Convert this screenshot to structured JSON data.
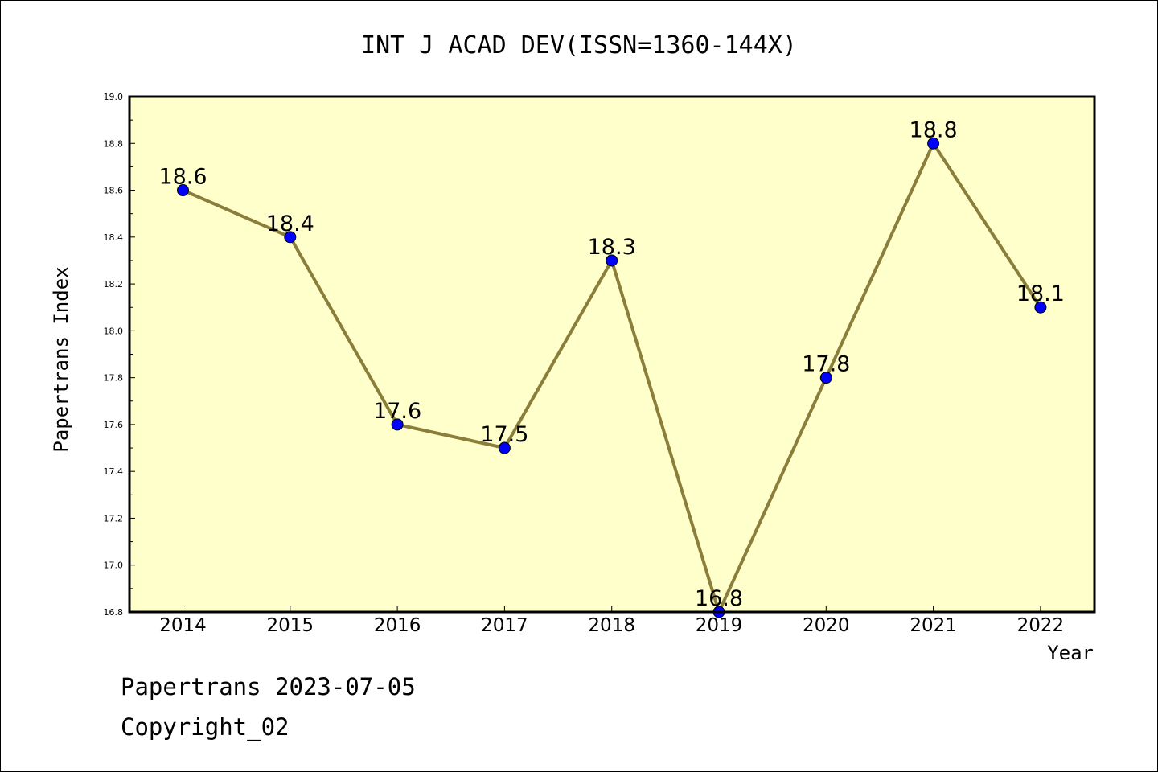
{
  "chart_data": {
    "type": "line",
    "title": "INT J ACAD DEV(ISSN=1360-144X)",
    "xlabel": "Year",
    "ylabel": "Papertrans Index",
    "categories": [
      "2014",
      "2015",
      "2016",
      "2017",
      "2018",
      "2019",
      "2020",
      "2021",
      "2022"
    ],
    "series": [
      {
        "values": [
          18.6,
          18.4,
          17.6,
          17.5,
          18.3,
          16.8,
          17.8,
          18.8,
          18.1
        ],
        "data_labels": [
          "18.6",
          "18.4",
          "17.6",
          "17.5",
          "18.3",
          "16.8",
          "17.8",
          "18.8",
          "18.1"
        ]
      }
    ],
    "ylim": [
      16.8,
      19.0
    ],
    "yticks": [
      "16.8",
      "17.0",
      "17.2",
      "17.4",
      "17.6",
      "17.8",
      "18.0",
      "18.2",
      "18.4",
      "18.6",
      "18.8",
      "19.0"
    ],
    "grid": false,
    "colors": {
      "plot_background": "#ffffcc",
      "line": "#8b7d3a",
      "marker": "#0000ff"
    }
  },
  "footer": {
    "line1": "Papertrans 2023-07-05",
    "line2": "Copyright_02"
  }
}
